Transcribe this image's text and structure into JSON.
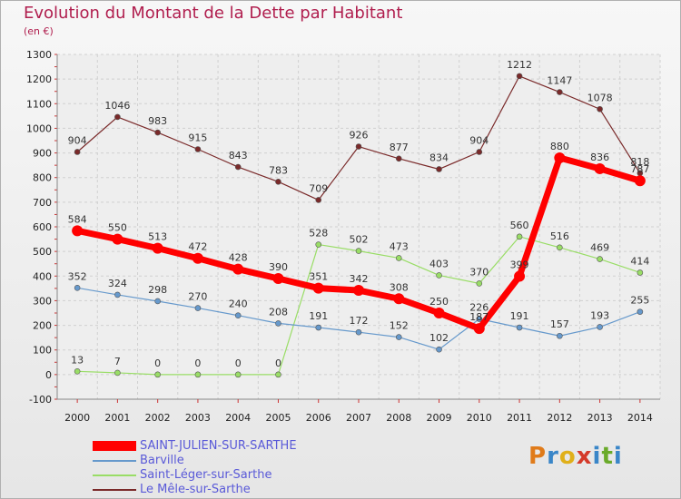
{
  "title": "Evolution du Montant de la Dette par Habitant",
  "subtitle": "(en €)",
  "logo": {
    "text": "Proxiti",
    "colors": [
      "#e07b1a",
      "#3a86c8",
      "#e0b01a",
      "#d43a2a",
      "#3a86c8",
      "#6aaa2a",
      "#3a86c8"
    ]
  },
  "chart_data": {
    "type": "line",
    "title": "Evolution du Montant de la Dette par Habitant",
    "subtitle": "(en €)",
    "x": [
      "2000",
      "2001",
      "2002",
      "2003",
      "2004",
      "2005",
      "2006",
      "2007",
      "2008",
      "2009",
      "2010",
      "2011",
      "2012",
      "2013",
      "2014"
    ],
    "ylim": [
      -100,
      1300
    ],
    "yticks": [
      -100,
      0,
      100,
      200,
      300,
      400,
      500,
      600,
      700,
      800,
      900,
      1000,
      1100,
      1200,
      1300
    ],
    "grid": true,
    "legend_position": "bottom-left",
    "series": [
      {
        "name": "Le Mêle-sur-Sarthe",
        "color": "#7a2a2a",
        "values": [
          904,
          1046,
          983,
          915,
          843,
          783,
          709,
          926,
          877,
          834,
          904,
          1212,
          1147,
          1078,
          818
        ]
      },
      {
        "name": "Saint-Léger-sur-Sarthe",
        "color": "#99dd66",
        "values": [
          13,
          7,
          0,
          0,
          0,
          0,
          528,
          502,
          473,
          403,
          370,
          560,
          516,
          469,
          414
        ]
      },
      {
        "name": "Barville",
        "color": "#6699cc",
        "values": [
          352,
          324,
          298,
          270,
          240,
          208,
          191,
          172,
          152,
          102,
          226,
          191,
          157,
          193,
          255
        ]
      },
      {
        "name": "SAINT-JULIEN-SUR-SARTHE",
        "color": "#ff0000",
        "values": [
          584,
          550,
          513,
          472,
          428,
          390,
          351,
          342,
          308,
          250,
          187,
          399,
          880,
          836,
          787
        ]
      }
    ],
    "data_labels": {
      "Le Mêle-sur-Sarthe": [
        "904",
        "1046",
        "983",
        "915",
        "843",
        "783",
        "709",
        "926",
        "877",
        "834",
        "904",
        "1212",
        "1147",
        "1078",
        "818"
      ],
      "Saint-Léger-sur-Sarthe": [
        "13",
        "7",
        "0",
        "0",
        "0",
        "0",
        "528",
        "502",
        "473",
        "403",
        "370",
        "560",
        "516",
        "469",
        "414"
      ],
      "Barville": [
        "352",
        "324",
        "298",
        "270",
        "240",
        "208",
        "191",
        "172",
        "152",
        "102",
        "226",
        "191",
        "157",
        "193",
        "255"
      ],
      "SAINT-JULIEN-SUR-SARTHE": [
        "584",
        "550",
        "513",
        "472",
        "428",
        "390",
        "351",
        "342",
        "308",
        "250",
        "187",
        "399",
        "880",
        "836",
        "787"
      ]
    }
  },
  "legend": [
    {
      "label": "SAINT-JULIEN-SUR-SARTHE",
      "color": "#ff0000"
    },
    {
      "label": "Barville",
      "color": "#6699cc"
    },
    {
      "label": "Saint-Léger-sur-Sarthe",
      "color": "#99dd66"
    },
    {
      "label": "Le Mêle-sur-Sarthe",
      "color": "#7a2a2a"
    }
  ]
}
